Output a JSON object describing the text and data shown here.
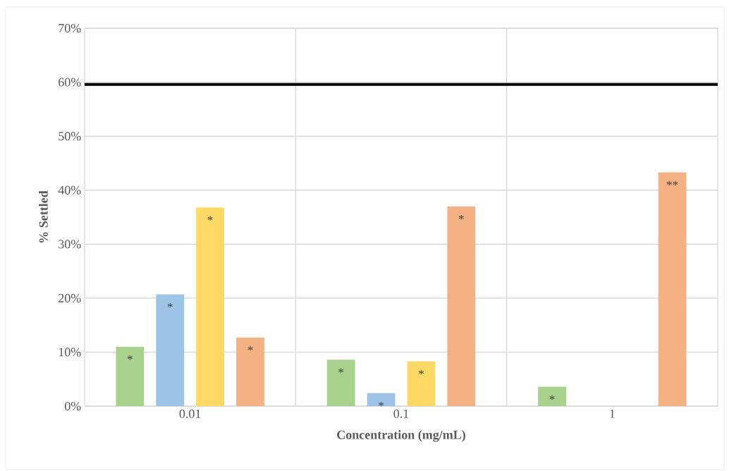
{
  "chart_data": {
    "type": "bar",
    "xlabel": "Concentration (mg/mL)",
    "ylabel": "% Settled",
    "categories": [
      "0.01",
      "0.1",
      "1"
    ],
    "series": [
      {
        "color": "#a9d18e",
        "values": [
          11.0,
          8.6,
          3.6
        ],
        "value_labels": [
          "*",
          "*",
          "*"
        ]
      },
      {
        "color": "#9dc3e6",
        "values": [
          20.7,
          2.4,
          null
        ],
        "value_labels": [
          "*",
          "*",
          null
        ]
      },
      {
        "color": "#ffd966",
        "values": [
          36.8,
          8.3,
          null
        ],
        "value_labels": [
          "*",
          "*",
          null
        ]
      },
      {
        "color": "#f4b183",
        "values": [
          12.7,
          37.0,
          43.3
        ],
        "value_labels": [
          "*",
          "*",
          "**"
        ]
      }
    ],
    "ylim": [
      0,
      70
    ],
    "yticks": [
      {
        "value": 0,
        "label": "0%"
      },
      {
        "value": 10,
        "label": "10%"
      },
      {
        "value": 20,
        "label": "20%"
      },
      {
        "value": 30,
        "label": "30%"
      },
      {
        "value": 40,
        "label": "40%"
      },
      {
        "value": 50,
        "label": "50%"
      },
      {
        "value": 60,
        "label": "60%"
      },
      {
        "value": 70,
        "label": "70%"
      }
    ],
    "grid": true,
    "ref_lines": [
      {
        "axis": "y",
        "value": 59.6,
        "color": "#000000"
      }
    ]
  }
}
